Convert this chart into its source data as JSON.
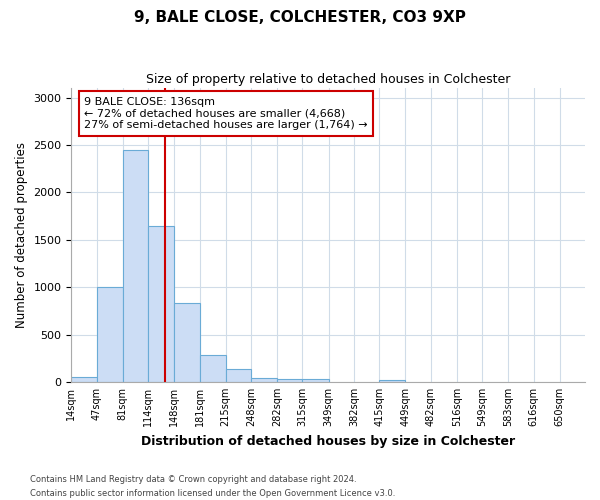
{
  "title": "9, BALE CLOSE, COLCHESTER, CO3 9XP",
  "subtitle": "Size of property relative to detached houses in Colchester",
  "xlabel": "Distribution of detached houses by size in Colchester",
  "ylabel": "Number of detached properties",
  "bar_color": "#ccddf5",
  "bar_edge_color": "#6aabd6",
  "fig_bg_color": "#ffffff",
  "ax_bg_color": "#ffffff",
  "grid_color": "#d0dce8",
  "property_line_x": 136,
  "annotation_line1": "9 BALE CLOSE: 136sqm",
  "annotation_line2": "← 72% of detached houses are smaller (4,668)",
  "annotation_line3": "27% of semi-detached houses are larger (1,764) →",
  "footer_line1": "Contains HM Land Registry data © Crown copyright and database right 2024.",
  "footer_line2": "Contains public sector information licensed under the Open Government Licence v3.0.",
  "bin_edges": [
    14,
    47,
    81,
    114,
    148,
    181,
    215,
    248,
    282,
    315,
    349,
    382,
    415,
    449,
    482,
    516,
    549,
    583,
    616,
    650,
    683
  ],
  "bar_heights": [
    55,
    1000,
    2450,
    1650,
    830,
    280,
    135,
    40,
    35,
    30,
    0,
    0,
    20,
    0,
    0,
    0,
    0,
    0,
    0,
    0
  ],
  "yticks": [
    0,
    500,
    1000,
    1500,
    2000,
    2500,
    3000
  ],
  "ylim": [
    0,
    3100
  ]
}
